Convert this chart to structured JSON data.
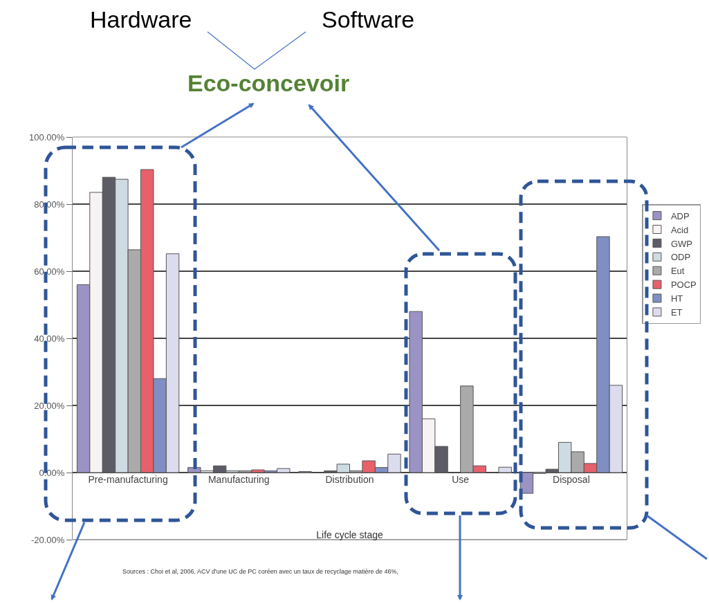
{
  "chart_data": {
    "type": "bar",
    "xlabel": "Life cycle stage",
    "categories": [
      "Pre-manufacturing",
      "Manufacturing",
      "Distribution",
      "Use",
      "Disposal"
    ],
    "series": [
      {
        "name": "ADP",
        "color": "#9a93c4",
        "values": [
          56,
          1.5,
          0.3,
          48,
          -6.2
        ]
      },
      {
        "name": "Acid",
        "color": "#f7f3f5",
        "values": [
          83.5,
          0.5,
          null,
          16,
          -0.3
        ]
      },
      {
        "name": "GWP",
        "color": "#5c5c66",
        "values": [
          88,
          2,
          0.5,
          7.8,
          1
        ]
      },
      {
        "name": "ODP",
        "color": "#cfdbe3",
        "values": [
          87.4,
          0.5,
          2.5,
          null,
          9
        ]
      },
      {
        "name": "Eut",
        "color": "#aaaaaa",
        "values": [
          66.4,
          0.5,
          0.5,
          25.8,
          6.2
        ]
      },
      {
        "name": "POCP",
        "color": "#e8606a",
        "values": [
          90.3,
          0.8,
          3.5,
          2,
          2.7
        ]
      },
      {
        "name": "HT",
        "color": "#7f8fc4",
        "values": [
          28,
          0.5,
          1.5,
          null,
          70.3
        ]
      },
      {
        "name": "ET",
        "color": "#dcdcef",
        "values": [
          65.2,
          1.2,
          5.5,
          1.6,
          26
        ]
      }
    ],
    "ylim": [
      -20,
      100
    ],
    "yticks": [
      {
        "value": -20,
        "label": "-20.00%"
      },
      {
        "value": 0,
        "label": "0.00%"
      },
      {
        "value": 20,
        "label": "20.00%"
      },
      {
        "value": 40,
        "label": "40.00%"
      },
      {
        "value": 60,
        "label": "60.00%"
      },
      {
        "value": 80,
        "label": "80.00%"
      },
      {
        "value": 100,
        "label": "100.00%"
      }
    ],
    "grid": "y",
    "legend": "right",
    "annotations": [
      "Hardware",
      "Software",
      "Eco-concevoir",
      "Sources : Choi et al, 2006, ACV d'une UC de PC coréen avec un taux de recyclage matière de 46%,"
    ]
  }
}
